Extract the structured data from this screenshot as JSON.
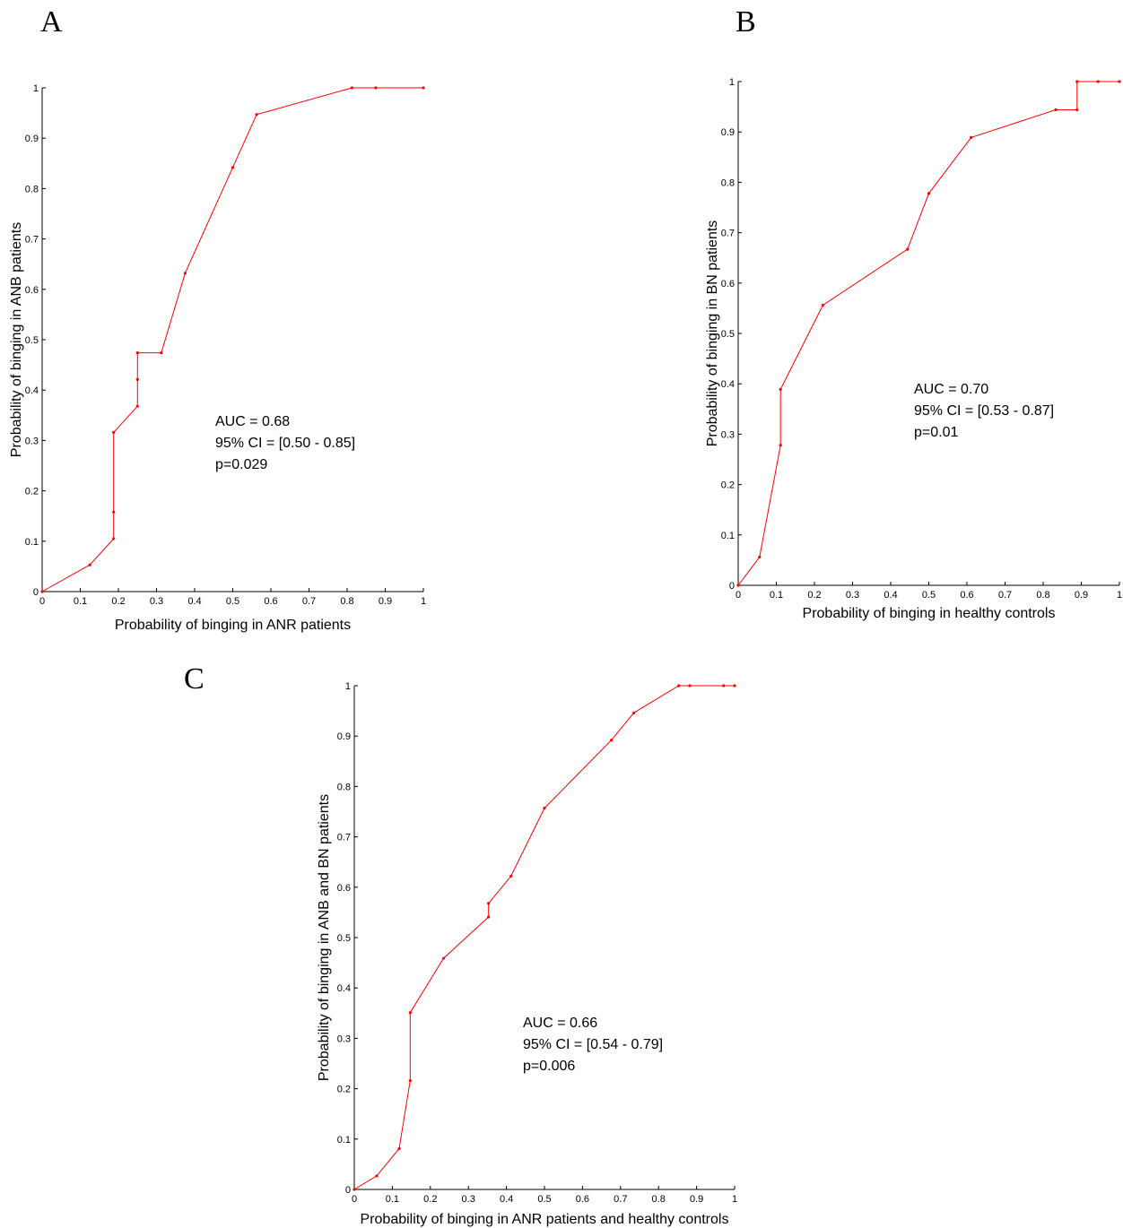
{
  "chart_data": [
    {
      "type": "line",
      "panel": "A",
      "xlabel": "Probability of binging in ANR patients",
      "ylabel": "Probability of binging in ANB patients",
      "xlim": [
        0,
        1
      ],
      "ylim": [
        0,
        1
      ],
      "xticks": [
        "0",
        "0.1",
        "0.2",
        "0.3",
        "0.4",
        "0.5",
        "0.6",
        "0.7",
        "0.8",
        "0.9",
        "1"
      ],
      "yticks": [
        "0",
        "0.1",
        "0.2",
        "0.3",
        "0.4",
        "0.5",
        "0.6",
        "0.7",
        "0.8",
        "0.9",
        "1"
      ],
      "annotations": [
        "AUC = 0.68",
        "95% CI = [0.50 - 0.85]",
        "p=0.029"
      ],
      "series": [
        {
          "color": "#ff0000",
          "x": [
            0,
            0.125,
            0.1875,
            0.1875,
            0.1875,
            0.25,
            0.25,
            0.25,
            0.3125,
            0.375,
            0.5,
            0.5625,
            0.8125,
            0.875,
            1
          ],
          "y": [
            0,
            0.053,
            0.105,
            0.158,
            0.316,
            0.368,
            0.421,
            0.474,
            0.474,
            0.632,
            0.842,
            0.947,
            1,
            1,
            1
          ]
        }
      ]
    },
    {
      "type": "line",
      "panel": "B",
      "xlabel": "Probability of binging in healthy controls",
      "ylabel": "Probability of binging in BN patients",
      "xlim": [
        0,
        1
      ],
      "ylim": [
        0,
        1
      ],
      "xticks": [
        "0",
        "0.1",
        "0.2",
        "0.3",
        "0.4",
        "0.5",
        "0.6",
        "0.7",
        "0.8",
        "0.9",
        "1"
      ],
      "yticks": [
        "0",
        "0.1",
        "0.2",
        "0.3",
        "0.4",
        "0.5",
        "0.6",
        "0.7",
        "0.8",
        "0.9",
        "1"
      ],
      "annotations": [
        "AUC = 0.70",
        "95% CI = [0.53 - 0.87]",
        "p=0.01"
      ],
      "series": [
        {
          "color": "#ff0000",
          "x": [
            0,
            0.056,
            0.111,
            0.111,
            0.222,
            0.444,
            0.5,
            0.611,
            0.833,
            0.889,
            0.889,
            0.944,
            1
          ],
          "y": [
            0,
            0.056,
            0.278,
            0.389,
            0.556,
            0.667,
            0.778,
            0.889,
            0.944,
            0.944,
            1,
            1,
            1
          ]
        }
      ]
    },
    {
      "type": "line",
      "panel": "C",
      "xlabel": "Probability of binging in ANR patients and healthy controls",
      "ylabel": "Probability of binging in ANB and BN patients",
      "xlim": [
        0,
        1
      ],
      "ylim": [
        0,
        1
      ],
      "xticks": [
        "0",
        "0.1",
        "0.2",
        "0.3",
        "0.4",
        "0.5",
        "0.6",
        "0.7",
        "0.8",
        "0.9",
        "1"
      ],
      "yticks": [
        "0",
        "0.1",
        "0.2",
        "0.3",
        "0.4",
        "0.5",
        "0.6",
        "0.7",
        "0.8",
        "0.9",
        "1"
      ],
      "annotations": [
        "AUC = 0.66",
        "95% CI = [0.54 - 0.79]",
        "p=0.006"
      ],
      "series": [
        {
          "color": "#ff0000",
          "x": [
            0,
            0.059,
            0.118,
            0.147,
            0.147,
            0.235,
            0.353,
            0.353,
            0.412,
            0.5,
            0.676,
            0.735,
            0.853,
            0.882,
            0.971,
            1
          ],
          "y": [
            0,
            0.027,
            0.081,
            0.216,
            0.351,
            0.459,
            0.541,
            0.568,
            0.622,
            0.757,
            0.892,
            0.946,
            1,
            1,
            1,
            1
          ]
        }
      ]
    }
  ]
}
